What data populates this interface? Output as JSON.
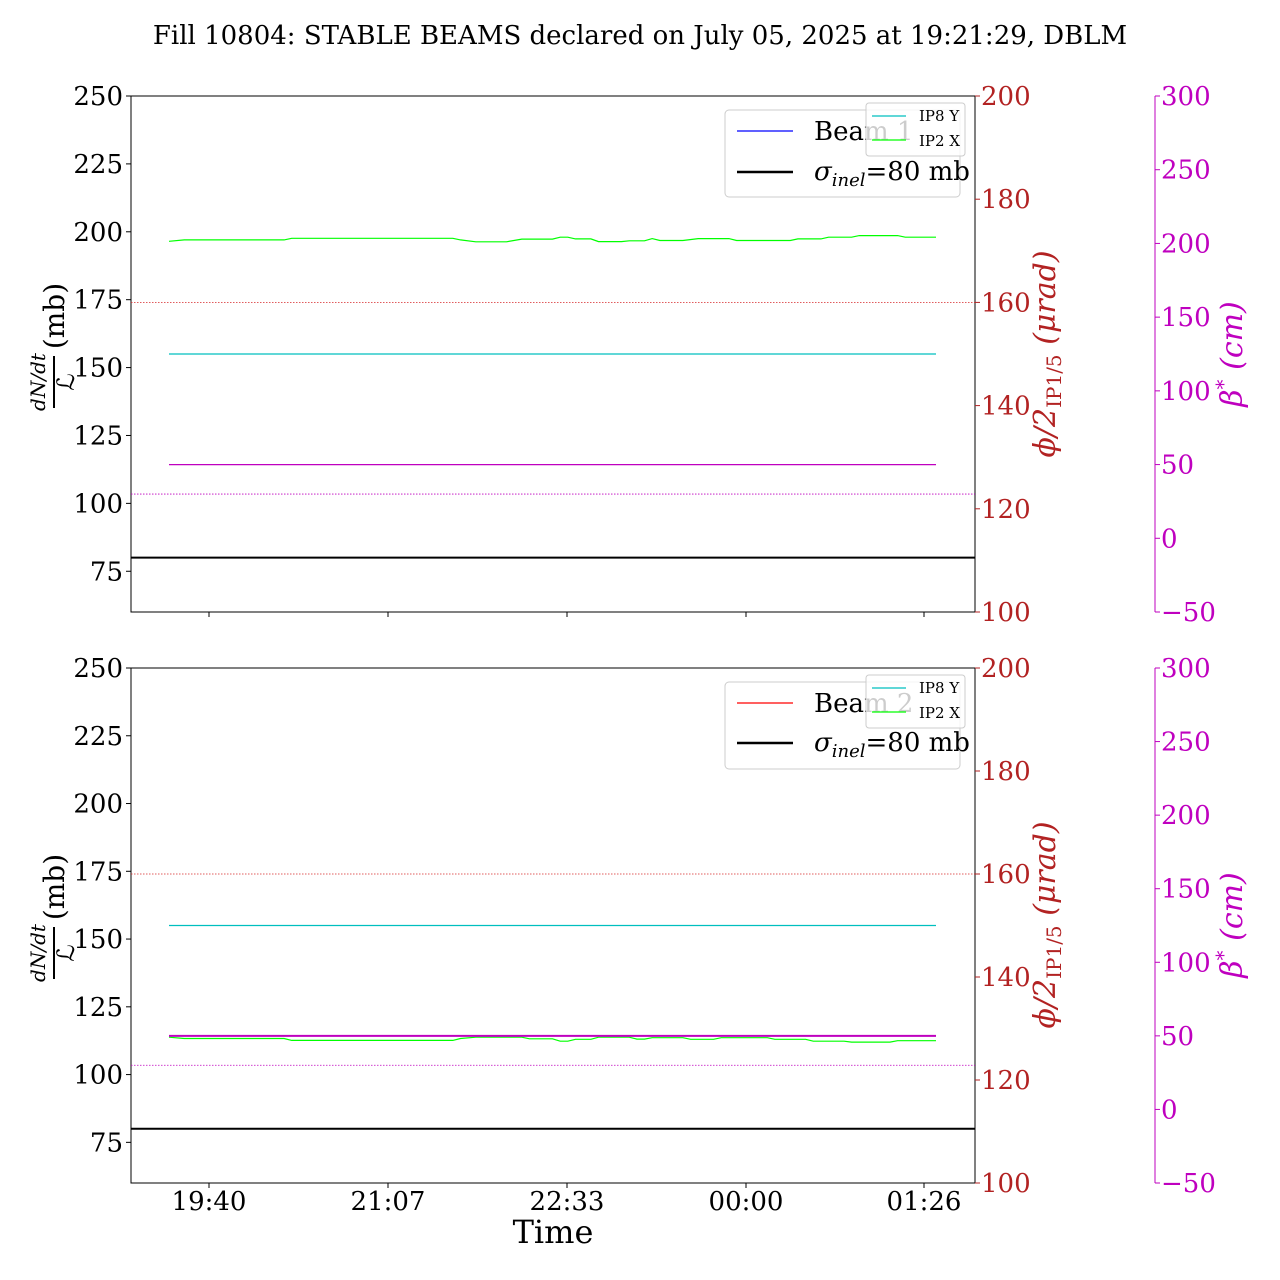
{
  "title": "Fill 10804: STABLE BEAMS declared on July 05, 2025 at 19:21:29, DBLM",
  "xlabel": "Time",
  "colors": {
    "beam1": "#0000ff",
    "beam2": "#ff0000",
    "ip8y": "#00bfbf",
    "ip2x": "#00ff00",
    "sigma": "#000000",
    "phi_axis": "#b22222",
    "beta_axis": "#bf00bf",
    "ref_red": "#d62728",
    "ref_magenta": "#bf00bf"
  },
  "axes": {
    "left": {
      "label_num": "dN/dt",
      "label_den": "ℒ",
      "label_unit": "(mb)",
      "ylim": [
        60,
        250
      ],
      "ticks": [
        "75",
        "100",
        "125",
        "150",
        "175",
        "200",
        "225",
        "250"
      ]
    },
    "right1": {
      "label_main": "ϕ/2",
      "label_sub": "IP1/5",
      "label_unit": "(μrad)",
      "ylim": [
        100,
        200
      ],
      "ticks": [
        "100",
        "120",
        "140",
        "160",
        "180",
        "200"
      ]
    },
    "right2": {
      "label_main": "β",
      "label_sup": "*",
      "label_unit": "(cm)",
      "ylim": [
        -50,
        300
      ],
      "ticks": [
        "−50",
        "0",
        "50",
        "100",
        "150",
        "200",
        "250",
        "300"
      ]
    },
    "x": {
      "ticks": [
        "19:40",
        "21:07",
        "22:33",
        "00:00",
        "01:26"
      ]
    }
  },
  "legend_main": {
    "p1": {
      "beam": "Beam 1",
      "sigma_sym": "σ",
      "sigma_sub": "inel",
      "sigma_val": "=80 mb"
    },
    "p2": {
      "beam": "Beam 2",
      "sigma_sym": "σ",
      "sigma_sub": "inel",
      "sigma_val": "=80 mb"
    }
  },
  "legend_small": {
    "ip8": "IP8 Y",
    "ip2": "IP2 X"
  },
  "chart_data": [
    {
      "type": "line",
      "panel": "top",
      "x_range": [
        "19:18",
        "01:33"
      ],
      "sigma_inel_mb": 80,
      "series": [
        {
          "name": "IP2 X",
          "axis": "left",
          "color": "#00ff00",
          "points": [
            [
              0,
              196.5
            ],
            [
              0.02,
              197
            ],
            [
              0.15,
              197
            ],
            [
              0.16,
              197.6
            ],
            [
              0.37,
              197.6
            ],
            [
              0.38,
              197
            ],
            [
              0.4,
              196.3
            ],
            [
              0.43,
              196.3
            ],
            [
              0.44,
              196.3
            ],
            [
              0.46,
              197.3
            ],
            [
              0.5,
              197.3
            ],
            [
              0.51,
              198
            ],
            [
              0.52,
              198
            ],
            [
              0.53,
              197.4
            ],
            [
              0.55,
              197.4
            ],
            [
              0.56,
              196.4
            ],
            [
              0.59,
              196.4
            ],
            [
              0.6,
              196.7
            ],
            [
              0.62,
              196.7
            ],
            [
              0.63,
              197.5
            ],
            [
              0.64,
              196.8
            ],
            [
              0.66,
              196.8
            ],
            [
              0.67,
              196.8
            ],
            [
              0.69,
              197.5
            ],
            [
              0.73,
              197.5
            ],
            [
              0.74,
              196.8
            ],
            [
              0.81,
              196.8
            ],
            [
              0.82,
              197.4
            ],
            [
              0.85,
              197.4
            ],
            [
              0.86,
              198
            ],
            [
              0.89,
              198
            ],
            [
              0.9,
              198.6
            ],
            [
              0.95,
              198.6
            ],
            [
              0.96,
              198
            ],
            [
              1.0,
              198
            ]
          ]
        },
        {
          "name": "IP8 Y",
          "axis": "left",
          "color": "#00bfbf",
          "points": [
            [
              0,
              155
            ],
            [
              1,
              155
            ]
          ]
        },
        {
          "name": "β*",
          "axis": "right2",
          "color": "#bf00bf",
          "points": [
            [
              0,
              50
            ],
            [
              1,
              50
            ]
          ]
        }
      ],
      "reference_lines": [
        {
          "axis": "left",
          "value": 80,
          "color": "#000000",
          "style": "solid"
        },
        {
          "axis": "right1",
          "value": 160,
          "color": "#d62728",
          "style": "dotted"
        },
        {
          "axis": "right2",
          "value": 30,
          "color": "#bf00bf",
          "style": "dotted"
        }
      ]
    },
    {
      "type": "line",
      "panel": "bottom",
      "x_range": [
        "19:18",
        "01:33"
      ],
      "sigma_inel_mb": 80,
      "series": [
        {
          "name": "IP2 X",
          "axis": "left",
          "color": "#00ff00",
          "points": [
            [
              0,
              113.8
            ],
            [
              0.02,
              113.3
            ],
            [
              0.15,
              113.3
            ],
            [
              0.16,
              112.6
            ],
            [
              0.37,
              112.6
            ],
            [
              0.38,
              113.3
            ],
            [
              0.4,
              113.8
            ],
            [
              0.46,
              113.8
            ],
            [
              0.47,
              113.2
            ],
            [
              0.5,
              113.2
            ],
            [
              0.51,
              112.3
            ],
            [
              0.52,
              112.3
            ],
            [
              0.53,
              113
            ],
            [
              0.55,
              113
            ],
            [
              0.56,
              113.8
            ],
            [
              0.6,
              113.8
            ],
            [
              0.61,
              113.1
            ],
            [
              0.62,
              113.1
            ],
            [
              0.63,
              113.6
            ],
            [
              0.67,
              113.6
            ],
            [
              0.68,
              113
            ],
            [
              0.71,
              113
            ],
            [
              0.72,
              113.6
            ],
            [
              0.78,
              113.6
            ],
            [
              0.79,
              113
            ],
            [
              0.83,
              113
            ],
            [
              0.84,
              112.3
            ],
            [
              0.88,
              112.3
            ],
            [
              0.89,
              112
            ],
            [
              0.94,
              112
            ],
            [
              0.95,
              112.5
            ],
            [
              1.0,
              112.5
            ]
          ]
        },
        {
          "name": "IP8 Y",
          "axis": "left",
          "color": "#00bfbf",
          "points": [
            [
              0,
              155
            ],
            [
              1,
              155
            ]
          ]
        },
        {
          "name": "β*",
          "axis": "right2",
          "color": "#bf00bf",
          "points": [
            [
              0,
              50
            ],
            [
              1,
              50
            ]
          ]
        }
      ],
      "reference_lines": [
        {
          "axis": "left",
          "value": 80,
          "color": "#000000",
          "style": "solid"
        },
        {
          "axis": "right1",
          "value": 160,
          "color": "#d62728",
          "style": "dotted"
        },
        {
          "axis": "right2",
          "value": 30,
          "color": "#bf00bf",
          "style": "dotted"
        }
      ]
    }
  ]
}
